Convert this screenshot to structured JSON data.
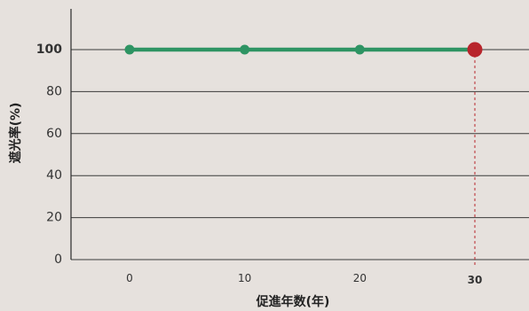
{
  "chart_data": {
    "type": "line",
    "xlabel": "促進年数(年)",
    "ylabel": "遮光率(%)",
    "x": [
      0,
      10,
      20,
      30
    ],
    "xticks": [
      "0",
      "10",
      "20",
      "30"
    ],
    "yticks": [
      "0",
      "20",
      "40",
      "60",
      "80",
      "100"
    ],
    "ylim": [
      0,
      100
    ],
    "xlim": [
      -5,
      35
    ],
    "grid": "horizontal",
    "series": [
      {
        "values": [
          100,
          100,
          100,
          100
        ]
      }
    ],
    "highlight": {
      "x": 30,
      "y": 100,
      "x_label": "30",
      "y_label": "100"
    },
    "colors": {
      "line": "#2e9463",
      "highlight": "#b8252c",
      "grid": "#3a3a3a",
      "background": "#e6e1dd"
    }
  }
}
